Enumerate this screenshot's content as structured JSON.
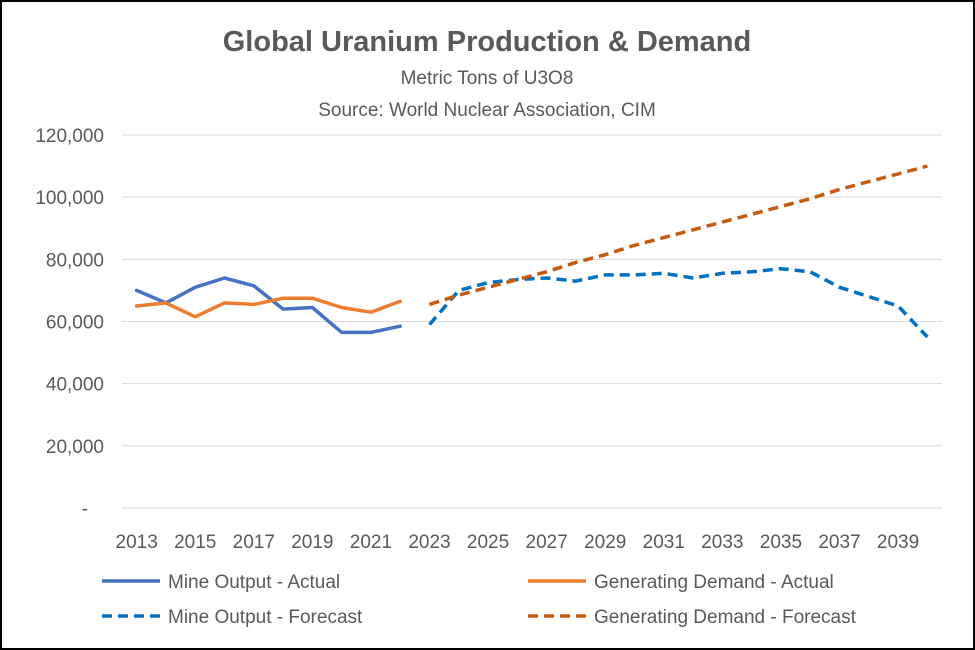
{
  "chart_data": {
    "type": "line",
    "title": "Global Uranium Production & Demand",
    "subtitles": [
      "Metric Tons of U3O8",
      "Source:  World Nuclear Association, CIM"
    ],
    "xlabel": "",
    "ylabel": "",
    "x": [
      2013,
      2014,
      2015,
      2016,
      2017,
      2018,
      2019,
      2020,
      2021,
      2022,
      2023,
      2024,
      2025,
      2026,
      2027,
      2028,
      2029,
      2030,
      2031,
      2032,
      2033,
      2034,
      2035,
      2036,
      2037,
      2038,
      2039,
      2040
    ],
    "xticks": [
      "2013",
      "2015",
      "2017",
      "2019",
      "2021",
      "2023",
      "2025",
      "2027",
      "2029",
      "2031",
      "2033",
      "2035",
      "2037",
      "2039"
    ],
    "xtick_values": [
      2013,
      2015,
      2017,
      2019,
      2021,
      2023,
      2025,
      2027,
      2029,
      2031,
      2033,
      2035,
      2037,
      2039
    ],
    "ylim": [
      0,
      120000
    ],
    "yticks": [
      0,
      20000,
      40000,
      60000,
      80000,
      100000,
      120000
    ],
    "ytick_labels": [
      "-",
      "20,000",
      "40,000",
      "60,000",
      "80,000",
      "100,000",
      "120,000"
    ],
    "grid": true,
    "legend_position": "bottom",
    "series": [
      {
        "name": "Mine Output - Actual",
        "color": "#4472C4",
        "style": "solid",
        "points": [
          [
            2013,
            70000
          ],
          [
            2014,
            66000
          ],
          [
            2015,
            71000
          ],
          [
            2016,
            74000
          ],
          [
            2017,
            71500
          ],
          [
            2018,
            64000
          ],
          [
            2019,
            64500
          ],
          [
            2020,
            56500
          ],
          [
            2021,
            56500
          ],
          [
            2022,
            58500
          ]
        ]
      },
      {
        "name": "Generating Demand - Actual",
        "color": "#ED7D31",
        "style": "solid",
        "points": [
          [
            2013,
            65000
          ],
          [
            2014,
            66000
          ],
          [
            2015,
            61500
          ],
          [
            2016,
            66000
          ],
          [
            2017,
            65500
          ],
          [
            2018,
            67500
          ],
          [
            2019,
            67500
          ],
          [
            2020,
            64500
          ],
          [
            2021,
            63000
          ],
          [
            2022,
            66500
          ]
        ]
      },
      {
        "name": "Mine Output - Forecast",
        "color": "#0070C0",
        "style": "dashed",
        "points": [
          [
            2023,
            59000
          ],
          [
            2024,
            70000
          ],
          [
            2025,
            72500
          ],
          [
            2026,
            73500
          ],
          [
            2027,
            74000
          ],
          [
            2028,
            73000
          ],
          [
            2029,
            75000
          ],
          [
            2030,
            75000
          ],
          [
            2031,
            75500
          ],
          [
            2032,
            74000
          ],
          [
            2033,
            75500
          ],
          [
            2034,
            76000
          ],
          [
            2035,
            77000
          ],
          [
            2036,
            76000
          ],
          [
            2037,
            71000
          ],
          [
            2038,
            68000
          ],
          [
            2039,
            65000
          ],
          [
            2040,
            55000
          ]
        ]
      },
      {
        "name": "Generating Demand - Forecast",
        "color": "#C55A11",
        "style": "dashed",
        "points": [
          [
            2023,
            65500
          ],
          [
            2024,
            68500
          ],
          [
            2025,
            71000
          ],
          [
            2026,
            73500
          ],
          [
            2027,
            76000
          ],
          [
            2028,
            79000
          ],
          [
            2029,
            81500
          ],
          [
            2030,
            84500
          ],
          [
            2031,
            87000
          ],
          [
            2032,
            89500
          ],
          [
            2033,
            92000
          ],
          [
            2034,
            94500
          ],
          [
            2035,
            97000
          ],
          [
            2036,
            99500
          ],
          [
            2037,
            102500
          ],
          [
            2038,
            105000
          ],
          [
            2039,
            107500
          ],
          [
            2040,
            110000
          ]
        ]
      }
    ]
  }
}
